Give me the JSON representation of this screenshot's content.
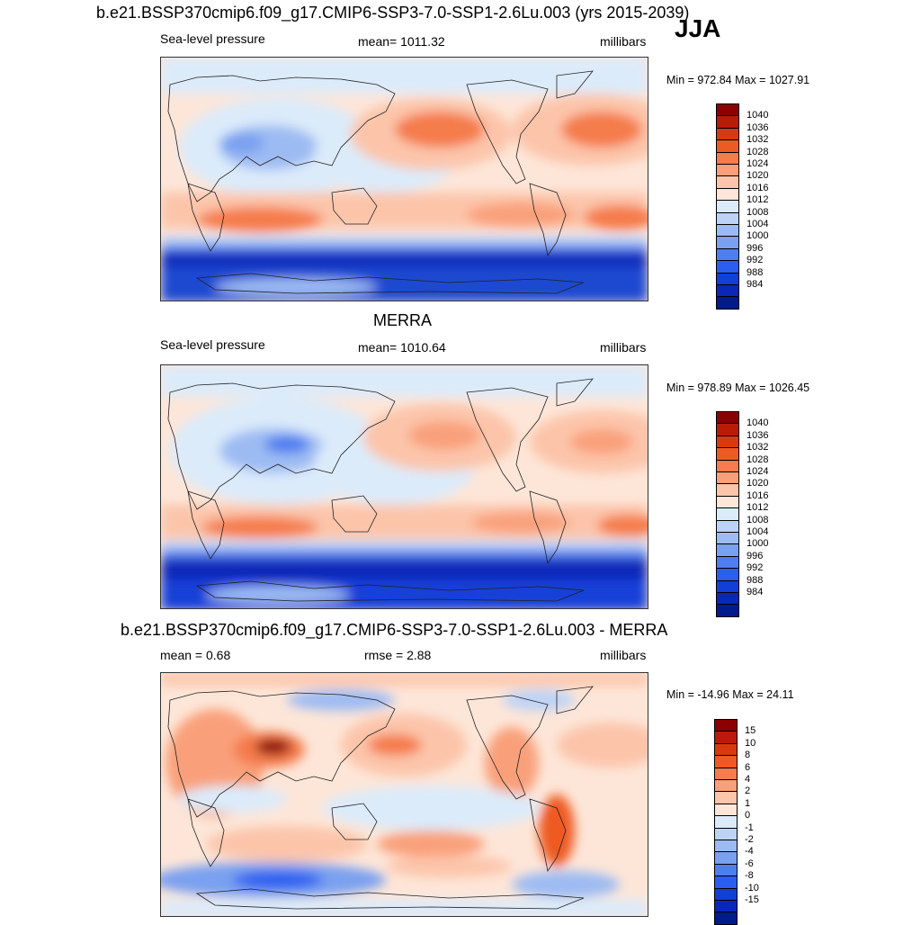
{
  "season": "JJA",
  "panels": [
    {
      "title": "b.e21.BSSP370cmip6.f09_g17.CMIP6-SSP3-7.0-SSP1-2.6Lu.003 (yrs 2015-2039)",
      "left_label": "Sea-level pressure",
      "center_label": "mean= 1011.32",
      "right_label": "millibars",
      "minmax": "Min = 972.84 Max = 1027.91",
      "colorbar": {
        "colors": [
          "#8b0000",
          "#b81c08",
          "#d83a10",
          "#ee5a24",
          "#f57c4c",
          "#f9a07a",
          "#fcc5aa",
          "#fde6d8",
          "#dcebfa",
          "#bdd3f6",
          "#9dbbf3",
          "#7aa0f0",
          "#4f7ef0",
          "#2a5ef0",
          "#123fd8",
          "#0a28b8",
          "#001a90"
        ],
        "labels": [
          "1040",
          "1036",
          "1032",
          "1028",
          "1024",
          "1020",
          "1016",
          "1012",
          "1008",
          "1004",
          "1000",
          "996",
          "992",
          "988",
          "984"
        ]
      }
    },
    {
      "title": "MERRA",
      "left_label": "Sea-level pressure",
      "center_label": "mean= 1010.64",
      "right_label": "millibars",
      "minmax": "Min = 978.89 Max = 1026.45",
      "colorbar": {
        "colors": [
          "#8b0000",
          "#b81c08",
          "#d83a10",
          "#ee5a24",
          "#f57c4c",
          "#f9a07a",
          "#fcc5aa",
          "#fde6d8",
          "#dcebfa",
          "#bdd3f6",
          "#9dbbf3",
          "#7aa0f0",
          "#4f7ef0",
          "#2a5ef0",
          "#123fd8",
          "#0a28b8",
          "#001a90"
        ],
        "labels": [
          "1040",
          "1036",
          "1032",
          "1028",
          "1024",
          "1020",
          "1016",
          "1012",
          "1008",
          "1004",
          "1000",
          "996",
          "992",
          "988",
          "984"
        ]
      }
    },
    {
      "title": "b.e21.BSSP370cmip6.f09_g17.CMIP6-SSP3-7.0-SSP1-2.6Lu.003 - MERRA",
      "left_label": "mean =   0.68",
      "center_label": "rmse =   2.88",
      "right_label": "millibars",
      "minmax": "Min = -14.96 Max =  24.11",
      "colorbar": {
        "colors": [
          "#8b0000",
          "#b81c08",
          "#d83a10",
          "#ee5a24",
          "#f57c4c",
          "#f9a07a",
          "#fcc5aa",
          "#fde6d8",
          "#dcebfa",
          "#bdd3f6",
          "#9dbbf3",
          "#7aa0f0",
          "#4f7ef0",
          "#2a5ef0",
          "#123fd8",
          "#0a28b8",
          "#001a90"
        ],
        "labels": [
          "15",
          "10",
          "8",
          "6",
          "4",
          "2",
          "1",
          "0",
          "-1",
          "-2",
          "-4",
          "-6",
          "-8",
          "-10",
          "-15"
        ]
      }
    }
  ]
}
